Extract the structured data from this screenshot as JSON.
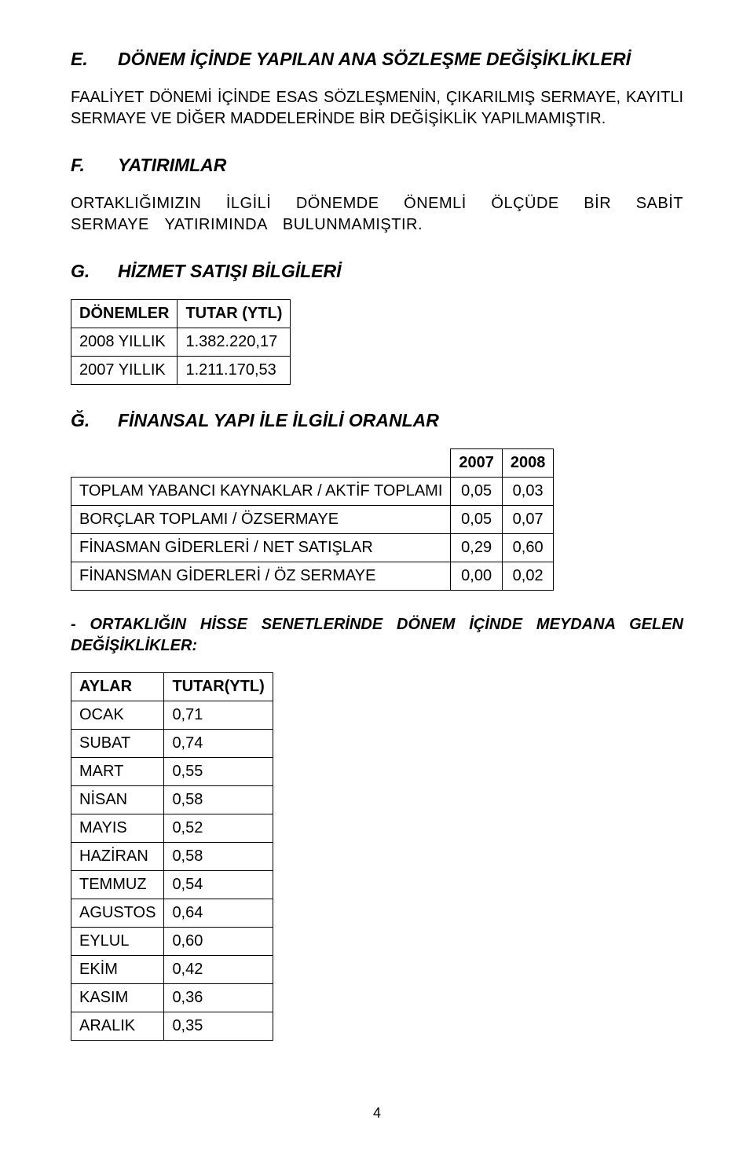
{
  "sectionE": {
    "letter": "E.",
    "title": "DÖNEM İÇİNDE YAPILAN ANA SÖZLEŞME DEĞİŞİKLİKLERİ",
    "body": "FAALİYET DÖNEMİ İÇİNDE ESAS SÖZLEŞMENİN, ÇIKARILMIŞ SERMAYE, KAYITLI SERMAYE VE DİĞER MADDELERİNDE BİR DEĞİŞİKLİK YAPILMAMIŞTIR."
  },
  "sectionF": {
    "letter": "F.",
    "title": "YATIRIMLAR",
    "body": "ORTAKLIĞIMIZIN İLGİLİ DÖNEMDE ÖNEMLİ ÖLÇÜDE BİR SABİT SERMAYE YATIRIMINDA BULUNMAMIŞTIR."
  },
  "sectionG": {
    "letter": "G.",
    "title": "HİZMET SATIŞI BİLGİLERİ",
    "table": {
      "headers": [
        "DÖNEMLER",
        "TUTAR (YTL)"
      ],
      "rows": [
        [
          "2008 YILLIK",
          "1.382.220,17"
        ],
        [
          "2007 YILLIK",
          "1.211.170,53"
        ]
      ]
    }
  },
  "sectionGcaron": {
    "letter": "Ğ.",
    "title": "FİNANSAL YAPI İLE İLGİLİ ORANLAR",
    "table": {
      "years": [
        "2007",
        "2008"
      ],
      "rows": [
        [
          "TOPLAM YABANCI KAYNAKLAR / AKTİF TOPLAMI",
          "0,05",
          "0,03"
        ],
        [
          "BORÇLAR TOPLAMI / ÖZSERMAYE",
          "0,05",
          "0,07"
        ],
        [
          "FİNASMAN GİDERLERİ / NET SATIŞLAR",
          "0,29",
          "0,60"
        ],
        [
          "FİNANSMAN GİDERLERİ / ÖZ SERMAYE",
          "0,00",
          "0,02"
        ]
      ]
    }
  },
  "subPara": "- ORTAKLIĞIN HİSSE SENETLERİNDE DÖNEM İÇİNDE MEYDANA GELEN DEĞİŞİKLİKLER:",
  "monthsTable": {
    "headers": [
      "AYLAR",
      "TUTAR(YTL)"
    ],
    "rows": [
      [
        "OCAK",
        "0,71"
      ],
      [
        "SUBAT",
        "0,74"
      ],
      [
        "MART",
        "0,55"
      ],
      [
        "NİSAN",
        "0,58"
      ],
      [
        "MAYIS",
        "0,52"
      ],
      [
        "HAZİRAN",
        "0,58"
      ],
      [
        "TEMMUZ",
        "0,54"
      ],
      [
        "AGUSTOS",
        "0,64"
      ],
      [
        "EYLUL",
        "0,60"
      ],
      [
        "EKİM",
        "0,42"
      ],
      [
        "KASIM",
        "0,36"
      ],
      [
        "ARALIK",
        "0,35"
      ]
    ]
  },
  "pageNumber": "4"
}
